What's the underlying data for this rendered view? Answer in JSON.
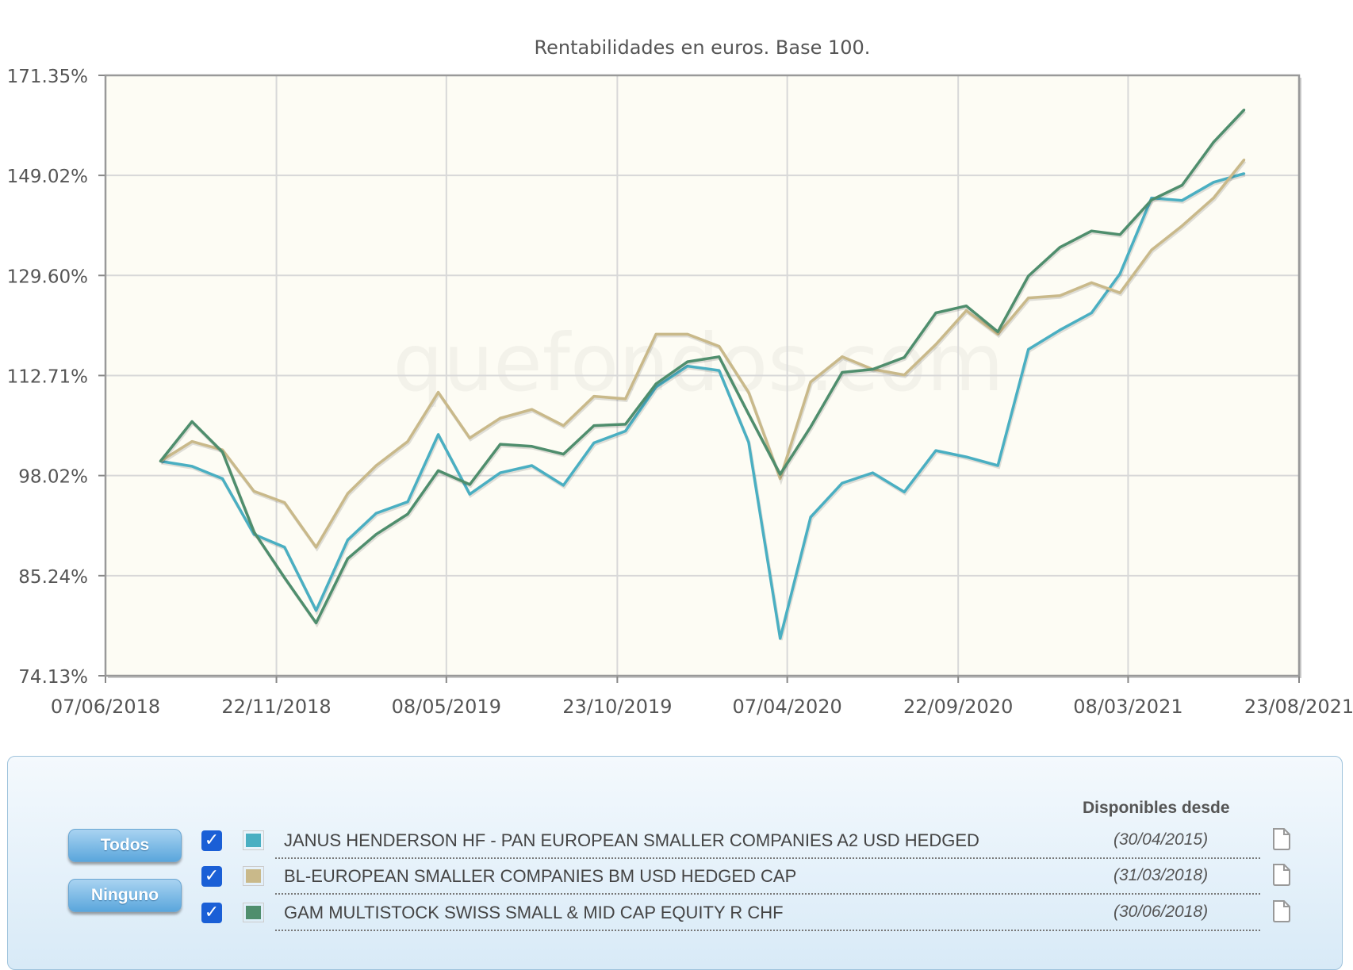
{
  "chart_data": {
    "type": "line",
    "title": "Rentabilidades en euros. Base 100.",
    "y_scale": "log",
    "ylim": [
      74.13,
      171.35
    ],
    "y_ticks": [
      "171.35%",
      "149.02%",
      "129.60%",
      "112.71%",
      "98.02%",
      "85.24%",
      "74.13%"
    ],
    "y_tick_values": [
      171.35,
      149.02,
      129.6,
      112.71,
      98.02,
      85.24,
      74.13
    ],
    "x_ticks": [
      "07/06/2018",
      "22/11/2018",
      "08/05/2019",
      "23/10/2019",
      "07/04/2020",
      "22/09/2020",
      "08/03/2021",
      "23/08/2021"
    ],
    "xlim": [
      "2018-06-07",
      "2021-08-23"
    ],
    "grid": true,
    "watermark": "quefondos.com",
    "x": [
      "2018-07-31",
      "2018-08-31",
      "2018-09-30",
      "2018-10-31",
      "2018-11-30",
      "2018-12-31",
      "2019-01-31",
      "2019-02-28",
      "2019-03-31",
      "2019-04-30",
      "2019-05-31",
      "2019-06-30",
      "2019-07-31",
      "2019-08-31",
      "2019-09-30",
      "2019-10-31",
      "2019-11-30",
      "2019-12-31",
      "2020-01-31",
      "2020-02-29",
      "2020-03-31",
      "2020-04-30",
      "2020-05-31",
      "2020-06-30",
      "2020-07-31",
      "2020-08-31",
      "2020-09-30",
      "2020-10-31",
      "2020-11-30",
      "2020-12-31",
      "2021-01-31",
      "2021-02-28",
      "2021-03-31",
      "2021-04-30",
      "2021-05-31",
      "2021-06-30"
    ],
    "series": [
      {
        "name": "JANUS HENDERSON HF - PAN EUROPEAN SMALLER COMPANIES A2 USD HEDGED",
        "color": "#4aafc2",
        "values": [
          100,
          99.3,
          97.6,
          90.3,
          88.7,
          81.2,
          89.6,
          93.0,
          94.5,
          103.8,
          95.5,
          98.4,
          99.4,
          96.7,
          102.6,
          104.3,
          110.9,
          114.2,
          113.5,
          102.7,
          78.1,
          92.5,
          97.0,
          98.4,
          95.8,
          101.5,
          100.6,
          99.4,
          116.9,
          120.1,
          123.0,
          129.9,
          144.4,
          143.9,
          147.6,
          149.4
        ]
      },
      {
        "name": "BL-EUROPEAN SMALLER COMPANIES BM USD HEDGED CAP",
        "color": "#c9b98a",
        "values": [
          100,
          102.8,
          101.6,
          95.9,
          94.4,
          88.7,
          95.6,
          99.4,
          102.8,
          110.1,
          103.3,
          106.2,
          107.5,
          105.1,
          109.5,
          109.1,
          119.4,
          119.4,
          117.4,
          110.1,
          97.6,
          111.7,
          115.7,
          113.7,
          112.8,
          117.7,
          123.4,
          119.4,
          125.6,
          126.0,
          128.3,
          126.5,
          134.3,
          138.9,
          144.4,
          152.3
        ]
      },
      {
        "name": "GAM MULTISTOCK SWISS SMALL & MID CAP EQUITY R CHF",
        "color": "#4f8e6d",
        "values": [
          100,
          105.7,
          101.3,
          90.6,
          85.0,
          79.8,
          87.3,
          90.3,
          92.9,
          98.7,
          96.8,
          102.4,
          102.1,
          101.0,
          105.1,
          105.3,
          111.4,
          114.9,
          115.7,
          106.8,
          98.2,
          104.9,
          113.2,
          113.7,
          115.6,
          123.0,
          124.2,
          119.8,
          129.5,
          134.8,
          137.9,
          137.2,
          144.0,
          147.0,
          156.1,
          163.3
        ]
      }
    ]
  },
  "legend": {
    "header": "Disponibles desde",
    "todos_label": "Todos",
    "ninguno_label": "Ninguno",
    "checkmark": "✓",
    "items": [
      {
        "name": "JANUS HENDERSON HF - PAN EUROPEAN SMALLER COMPANIES A2 USD HEDGED",
        "since": "(30/04/2015)",
        "color": "#4aafc2",
        "checked": true,
        "icon": "file-icon"
      },
      {
        "name": "BL-EUROPEAN SMALLER COMPANIES BM USD HEDGED CAP",
        "since": "(31/03/2018)",
        "color": "#c9b98a",
        "checked": true,
        "icon": "file-icon"
      },
      {
        "name": "GAM MULTISTOCK SWISS SMALL & MID CAP EQUITY R CHF",
        "since": "(30/06/2018)",
        "color": "#4f8e6d",
        "checked": true,
        "icon": "file-icon"
      }
    ]
  }
}
